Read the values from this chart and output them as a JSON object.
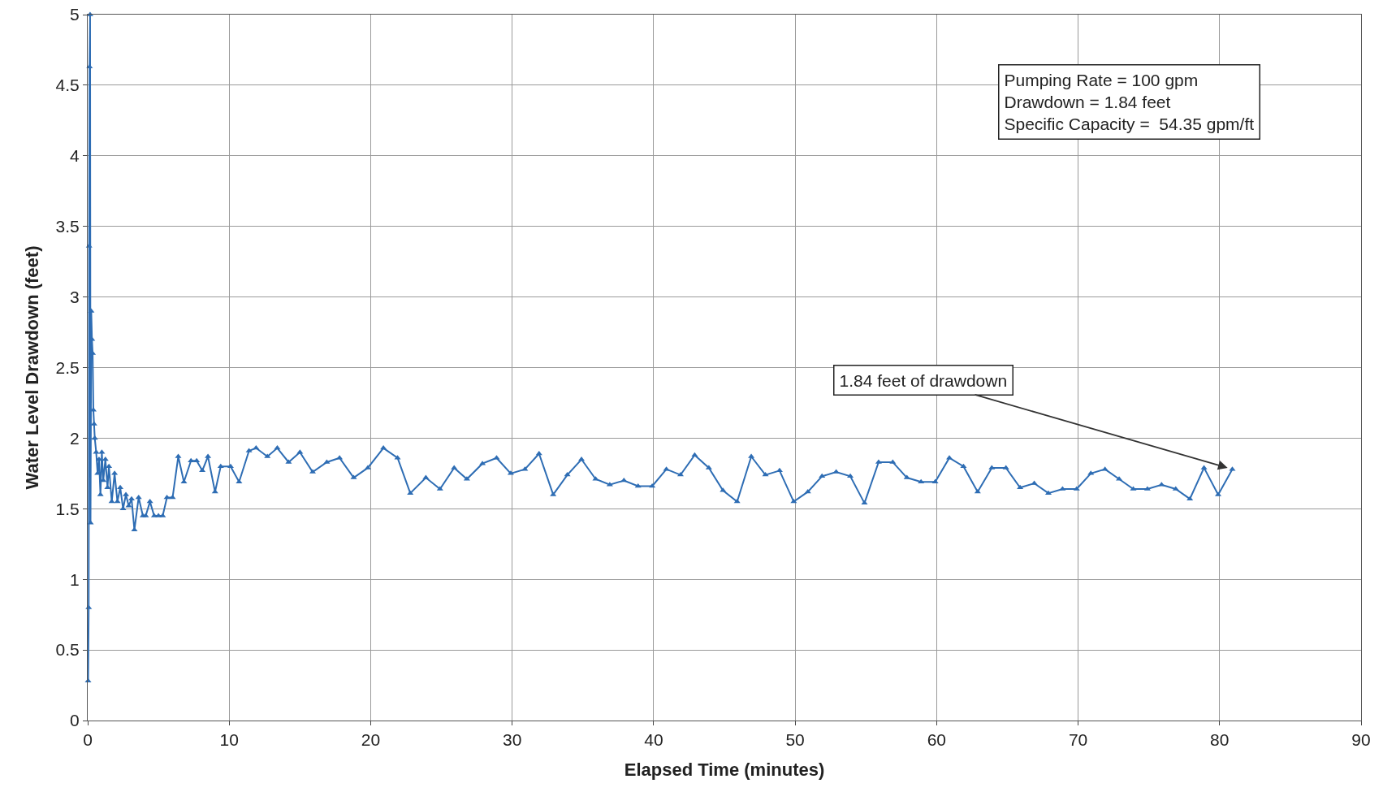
{
  "chart_data": {
    "type": "line",
    "xlabel": "Elapsed Time (minutes)",
    "ylabel": "Water Level Drawdown (feet)",
    "x": [
      0.03,
      0.07,
      0.1,
      0.13,
      0.17,
      0.2,
      0.25,
      0.3,
      0.35,
      0.4,
      0.45,
      0.5,
      0.6,
      0.7,
      0.8,
      0.9,
      1.0,
      1.1,
      1.25,
      1.4,
      1.5,
      1.7,
      1.9,
      2.1,
      2.3,
      2.5,
      2.7,
      2.9,
      3.1,
      3.3,
      3.6,
      3.9,
      4.1,
      4.4,
      4.7,
      5.0,
      5.3,
      5.6,
      6.0,
      6.4,
      6.8,
      7.3,
      7.7,
      8.1,
      8.5,
      9,
      9.4,
      10.1,
      10.7,
      11.4,
      11.9,
      12.7,
      13.4,
      14.2,
      15,
      15.9,
      16.9,
      17.8,
      18.8,
      19.8,
      20.9,
      21.9,
      22.8,
      23.9,
      24.9,
      25.9,
      26.8,
      27.9,
      28.9,
      29.9,
      30.9,
      31.9,
      32.9,
      33.9,
      34.9,
      35.9,
      36.9,
      37.9,
      38.9,
      39.9,
      40.9,
      41.9,
      42.9,
      43.9,
      44.9,
      45.9,
      46.9,
      47.9,
      48.9,
      49.9,
      50.9,
      51.9,
      52.9,
      53.9,
      54.9,
      55.9,
      56.9,
      57.9,
      58.9,
      59.9,
      60.9,
      61.9,
      62.9,
      63.9,
      64.9,
      65.9,
      66.9,
      67.9,
      68.9,
      69.9,
      70.9,
      71.9,
      72.9,
      73.9,
      74.9,
      75.9,
      76.9,
      77.9,
      78.9,
      79.9,
      80.9
    ],
    "series": [
      {
        "color": "#2e6db4",
        "values": [
          0.28,
          0.8,
          3.36,
          4.63,
          5.0,
          1.4,
          2.9,
          2.7,
          2.6,
          2.2,
          2.1,
          2.0,
          1.9,
          1.75,
          1.85,
          1.6,
          1.9,
          1.7,
          1.85,
          1.65,
          1.8,
          1.55,
          1.75,
          1.55,
          1.65,
          1.5,
          1.6,
          1.52,
          1.57,
          1.35,
          1.58,
          1.45,
          1.45,
          1.55,
          1.45,
          1.45,
          1.45,
          1.58,
          1.58,
          1.87,
          1.69,
          1.84,
          1.84,
          1.77,
          1.87,
          1.62,
          1.8,
          1.8,
          1.69,
          1.91,
          1.93,
          1.87,
          1.93,
          1.83,
          1.9,
          1.76,
          1.83,
          1.86,
          1.72,
          1.79,
          1.93,
          1.86,
          1.61,
          1.72,
          1.64,
          1.79,
          1.71,
          1.82,
          1.86,
          1.75,
          1.78,
          1.89,
          1.6,
          1.74,
          1.85,
          1.71,
          1.67,
          1.7,
          1.66,
          1.66,
          1.78,
          1.74,
          1.88,
          1.79,
          1.63,
          1.55,
          1.87,
          1.74,
          1.77,
          1.55,
          1.62,
          1.73,
          1.76,
          1.73,
          1.54,
          1.83,
          1.83,
          1.72,
          1.69,
          1.69,
          1.86,
          1.8,
          1.62,
          1.79,
          1.79,
          1.65,
          1.68,
          1.61,
          1.64,
          1.64,
          1.75,
          1.78,
          1.71,
          1.64,
          1.64,
          1.67,
          1.64,
          1.57,
          1.79,
          1.6,
          1.78
        ]
      }
    ],
    "xlim": [
      0,
      90
    ],
    "xticks": [
      0,
      10,
      20,
      30,
      40,
      50,
      60,
      70,
      80,
      90
    ],
    "ylim": [
      0,
      5
    ],
    "yticks": [
      0,
      0.5,
      1,
      1.5,
      2,
      2.5,
      3,
      3.5,
      4,
      4.5,
      5
    ],
    "grid": true,
    "marker": "triangle",
    "line_style": "solid",
    "annotations": [
      "Pumping Rate = 100 gpm\nDrawdown = 1.84 feet\nSpecific Capacity =  54.35 gpm/ft",
      {
        "text": "1.84 feet of drawdown",
        "x": 80.9,
        "y": 1.78
      }
    ]
  }
}
